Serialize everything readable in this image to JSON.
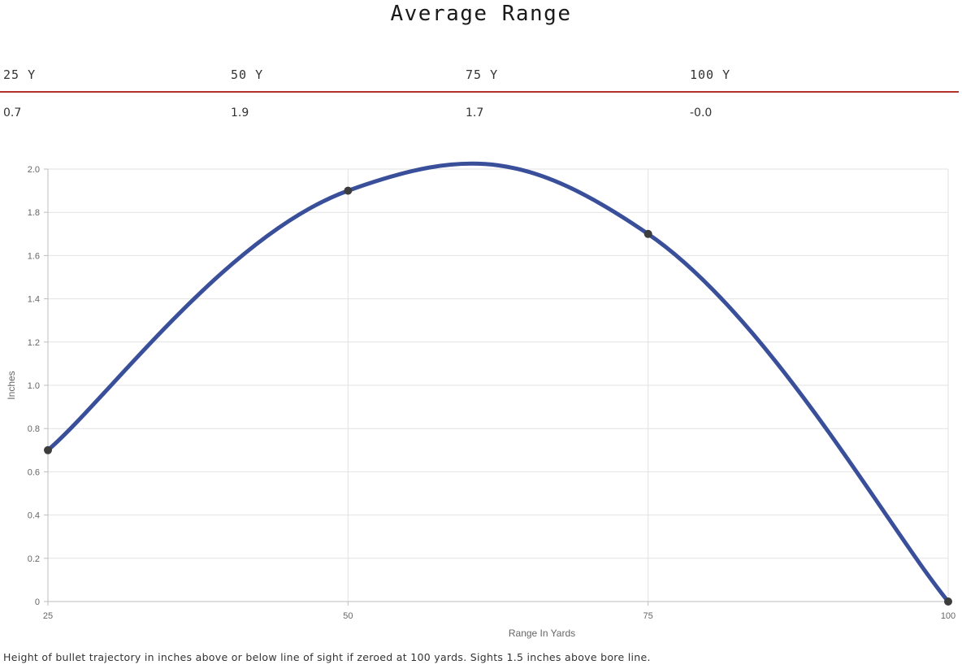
{
  "title": "Average Range",
  "range_table": {
    "headers": [
      "25 Y",
      "50 Y",
      "75 Y",
      "100 Y"
    ],
    "values": [
      "0.7",
      "1.9",
      "1.7",
      "-0.0"
    ]
  },
  "colors": {
    "line": "#3a4f9a",
    "point": "#3d3d3d",
    "table_rule": "#b5322b",
    "grid": "#e2e2e2"
  },
  "chart_data": {
    "type": "line",
    "x": [
      25,
      50,
      75,
      100
    ],
    "series": [
      {
        "values": [
          0.7,
          1.9,
          1.7,
          0.0
        ]
      }
    ],
    "xlabel": "Range In Yards",
    "ylabel": "Inches",
    "xlim": [
      25,
      100
    ],
    "ylim": [
      0,
      2.0
    ],
    "x_ticks": [
      "25",
      "50",
      "75",
      "100"
    ],
    "y_ticks": [
      "0",
      "0.2",
      "0.4",
      "0.6",
      "0.8",
      "1.0",
      "1.2",
      "1.4",
      "1.6",
      "1.8",
      "2.0"
    ],
    "grid": true,
    "curve": "smooth"
  },
  "footnote": "Height of bullet trajectory in inches above or below line of sight if zeroed at 100 yards. Sights 1.5 inches above bore line."
}
